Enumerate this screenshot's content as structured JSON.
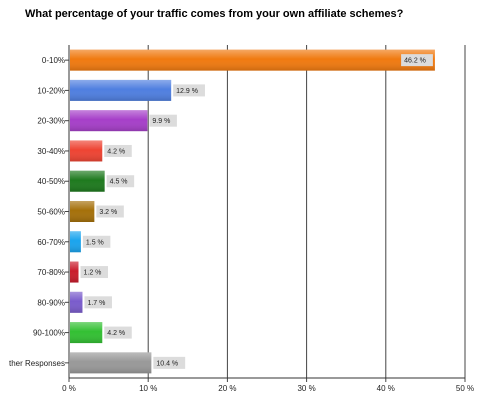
{
  "chart_data": {
    "type": "bar",
    "orientation": "horizontal",
    "title": "What percentage of your traffic comes from your own affiliate schemes?",
    "categories": [
      "0-10%",
      "10-20%",
      "20-30%",
      "30-40%",
      "40-50%",
      "50-60%",
      "60-70%",
      "70-80%",
      "80-90%",
      "90-100%",
      "ther Responses"
    ],
    "values": [
      46.2,
      12.9,
      9.9,
      4.2,
      4.5,
      3.2,
      1.5,
      1.2,
      1.7,
      4.2,
      10.4
    ],
    "value_labels": [
      "46.2 %",
      "12.9 %",
      "9.9 %",
      "4.2 %",
      "4.5 %",
      "3.2 %",
      "1.5 %",
      "1.2 %",
      "1.7 %",
      "4.2 %",
      "10.4 %"
    ],
    "colors": [
      "#f07a10",
      "#4f7fe0",
      "#a63fc9",
      "#ee4433",
      "#1e7a1e",
      "#a5700a",
      "#1aa4ee",
      "#c91c2c",
      "#7a5ccc",
      "#33c033",
      "#999999"
    ],
    "xlim": [
      0,
      50
    ],
    "xticks": [
      0,
      10,
      20,
      30,
      40,
      50
    ],
    "xtick_labels": [
      "0 %",
      "10 %",
      "20 %",
      "30 %",
      "40 %",
      "50 %"
    ],
    "grid": true,
    "legend": "none"
  }
}
